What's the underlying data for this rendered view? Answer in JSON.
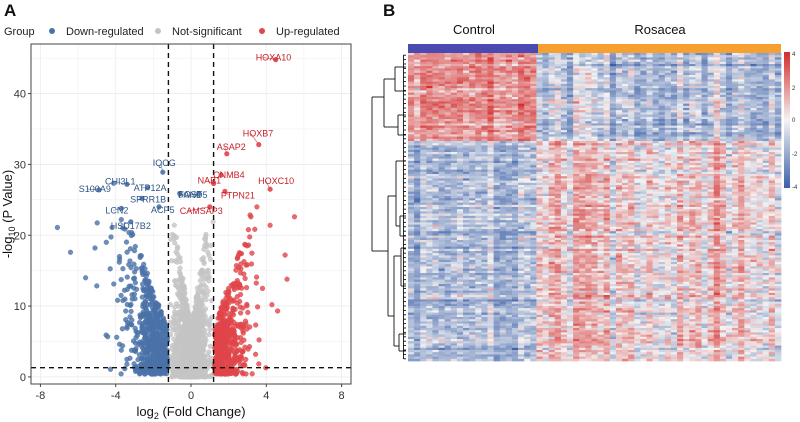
{
  "panels": {
    "volcano_letter": "A",
    "heatmap_letter": "B"
  },
  "legend": {
    "title": "Group",
    "entries": [
      {
        "label": "Down-regulated",
        "color": "#4a72a8"
      },
      {
        "label": "Not-significant",
        "color": "#c4c4c4"
      },
      {
        "label": "Up-regulated",
        "color": "#e0454a"
      }
    ]
  },
  "chart_data": [
    {
      "type": "scatter",
      "title": "",
      "xlabel_prefix": "log",
      "xlabel_sub": "2",
      "xlabel_suffix": " (Fold Change)",
      "ylabel_prefix": "-log",
      "ylabel_sub": "10",
      "ylabel_suffix": " (P Value)",
      "xlim": [
        -8.5,
        8.5
      ],
      "ylim": [
        -1,
        47
      ],
      "xticks": [
        -8,
        -4,
        0,
        4,
        8
      ],
      "yticks": [
        0,
        10,
        20,
        30,
        40
      ],
      "thresholds": {
        "logfc": [
          -1.2,
          1.2
        ],
        "neglog10p": 1.3
      },
      "grid": true,
      "labeled_genes": [
        {
          "gene": "HOXA10",
          "x": 4.5,
          "y": 44.8,
          "group": "up"
        },
        {
          "gene": "HOXB7",
          "x": 3.6,
          "y": 32.8,
          "group": "up"
        },
        {
          "gene": "ASAP2",
          "x": 1.9,
          "y": 31.5,
          "group": "up"
        },
        {
          "gene": "CNMB4",
          "x": 1.6,
          "y": 28.5,
          "group": "up"
        },
        {
          "gene": "NAB1",
          "x": 1.2,
          "y": 27.3,
          "group": "up"
        },
        {
          "gene": "PTPN21",
          "x": 1.8,
          "y": 26.2,
          "group": "up"
        },
        {
          "gene": "HOXC10",
          "x": 4.2,
          "y": 26.5,
          "group": "up"
        },
        {
          "gene": "CAMSAP3",
          "x": 1.0,
          "y": 24.0,
          "group": "up"
        },
        {
          "gene": "IQCG",
          "x": -1.5,
          "y": 28.9,
          "group": "down"
        },
        {
          "gene": "CHI3L1",
          "x": -3.4,
          "y": 27.2,
          "group": "down"
        },
        {
          "gene": "ATP12A",
          "x": -2.3,
          "y": 26.7,
          "group": "down"
        },
        {
          "gene": "S100A9",
          "x": -4.9,
          "y": 26.4,
          "group": "down"
        },
        {
          "gene": "SOSTDC1",
          "x": -0.6,
          "y": 25.9,
          "group": "down"
        },
        {
          "gene": "FAND5",
          "x": 0.4,
          "y": 25.8,
          "group": "down"
        },
        {
          "gene": "SPRR1B",
          "x": -2.6,
          "y": 25.2,
          "group": "down"
        },
        {
          "gene": "LCN2",
          "x": -3.7,
          "y": 23.8,
          "group": "down"
        },
        {
          "gene": "ACP5",
          "x": -1.7,
          "y": 24.0,
          "group": "down"
        },
        {
          "gene": "HSD17B2",
          "x": -3.2,
          "y": 21.9,
          "group": "down"
        }
      ],
      "label_text": {
        "HOXA10": "HOXA10",
        "HOXB7": "HOXB7",
        "ASAP2": "ASAP2",
        "CNMB4": "CNMB4",
        "NAB1": "NAB1",
        "PTPN21": "PTPN21",
        "HOXC10": "HOXC10",
        "CAMSAP3": "CAMSAP3",
        "IQCG": "IQCG",
        "CHI3L1": "CHI3L1",
        "ATP12A": "ATP12A",
        "S100A9": "S100A9",
        "SOSTDC1": "SOST",
        "FAND5": "FAND5",
        "SPRR1B": "SPRR1B",
        "LCN2": "LCN2",
        "ACP5": "ACP5",
        "HSD17B2": "HSD17B2"
      },
      "point_counts": {
        "down": 620,
        "not_significant": 1500,
        "up": 500
      }
    },
    {
      "type": "heatmap",
      "column_groups": [
        {
          "label": "Control",
          "n": 21,
          "color": "#4a4ab0"
        },
        {
          "label": "Rosacea",
          "n": 40,
          "color": "#f5a030"
        }
      ],
      "n_rows": 140,
      "row_blocks": [
        {
          "name": "down-in-rosacea",
          "rows": 40
        },
        {
          "name": "up-in-rosacea",
          "rows": 100
        }
      ],
      "color_scale": {
        "min": -4,
        "max": 4,
        "low": "#3a5fa8",
        "mid": "#f4f4f4",
        "high": "#d42a2a"
      },
      "colorbar_ticks": [
        "4",
        "2",
        "0",
        "-2",
        "-4"
      ]
    }
  ]
}
